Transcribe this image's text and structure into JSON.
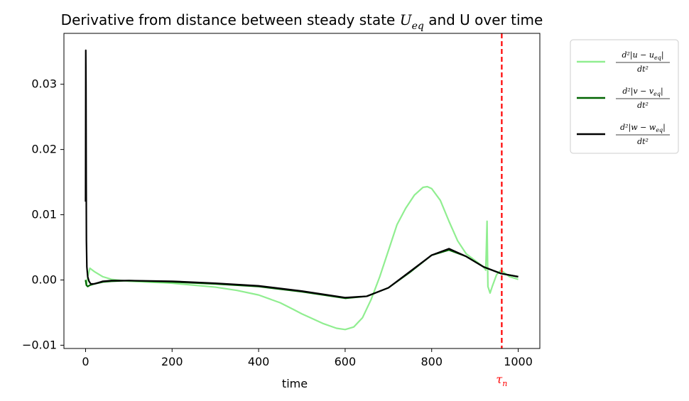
{
  "chart_data": {
    "type": "line",
    "title": "Derivative from distance between steady state U_eq and U over time",
    "title_parts": {
      "before": "Derivative from distance between steady state ",
      "var": "U",
      "sub": "eq",
      "after": " and U over time"
    },
    "xlabel": "time",
    "ylabel": "",
    "xlim": [
      -50,
      1050
    ],
    "ylim": [
      -0.0105,
      0.0378
    ],
    "xticks": [
      0,
      200,
      400,
      600,
      800,
      1000
    ],
    "xtick_labels": [
      "0",
      "200",
      "400",
      "600",
      "800",
      "1000"
    ],
    "yticks": [
      -0.01,
      0.0,
      0.01,
      0.02,
      0.03
    ],
    "ytick_labels": [
      "−0.01",
      "0.00",
      "0.01",
      "0.02",
      "0.03"
    ],
    "grid": false,
    "legend_placement": "outside-top-right",
    "vline": {
      "x": 962,
      "color": "#ff0000",
      "style": "dashed",
      "label": "τ",
      "label_sub": "n"
    },
    "series": [
      {
        "name": "d²|u − u_eq| / dt²",
        "num": "d²|u − u",
        "num_sub": "eq",
        "num_end": "|",
        "den": "dt²",
        "color": "#90ee90",
        "x": [
          0,
          2,
          5,
          10,
          20,
          40,
          60,
          100,
          200,
          300,
          350,
          400,
          450,
          480,
          500,
          520,
          550,
          580,
          600,
          620,
          640,
          660,
          680,
          700,
          720,
          740,
          760,
          780,
          790,
          800,
          820,
          840,
          860,
          880,
          900,
          910,
          920,
          925,
          928,
          930,
          935,
          940,
          950,
          960,
          970,
          980,
          990,
          1000
        ],
        "y": [
          0.0,
          -0.0008,
          0.0005,
          0.0018,
          0.0013,
          0.0005,
          0.0001,
          -0.0002,
          -0.0005,
          -0.0011,
          -0.0016,
          -0.0023,
          -0.0035,
          -0.0045,
          -0.0052,
          -0.0058,
          -0.0067,
          -0.0074,
          -0.0076,
          -0.0072,
          -0.0058,
          -0.003,
          0.0005,
          0.0045,
          0.0085,
          0.011,
          0.013,
          0.0142,
          0.0143,
          0.014,
          0.0122,
          0.009,
          0.006,
          0.004,
          0.003,
          0.0025,
          0.002,
          0.0015,
          0.009,
          -0.001,
          -0.002,
          -0.001,
          0.0008,
          0.0015,
          0.001,
          0.0005,
          0.0003,
          0.0001
        ]
      },
      {
        "name": "d²|v − v_eq| / dt²",
        "num": "d²|v − v",
        "num_sub": "eq",
        "num_end": "|",
        "den": "dt²",
        "color": "#006400",
        "x": [
          0,
          2,
          5,
          10,
          20,
          40,
          60,
          100,
          200,
          300,
          400,
          500,
          600,
          650,
          700,
          750,
          800,
          840,
          880,
          920,
          960,
          1000
        ],
        "y": [
          0.0,
          -0.0008,
          -0.001,
          -0.0008,
          -0.0006,
          -0.0003,
          -0.0002,
          -0.0001,
          -0.0003,
          -0.0006,
          -0.001,
          -0.0018,
          -0.0028,
          -0.0025,
          -0.0012,
          0.0012,
          0.0038,
          0.0046,
          0.0036,
          0.002,
          0.001,
          0.0005
        ]
      },
      {
        "name": "d²|w − w_eq| / dt²",
        "num": "d²|w − w",
        "num_sub": "eq",
        "num_end": "|",
        "den": "dt²",
        "color": "#000000",
        "x": [
          0,
          0.5,
          1,
          1.5,
          2,
          3,
          5,
          8,
          12,
          20,
          30,
          40,
          60,
          100,
          200,
          300,
          400,
          500,
          600,
          650,
          700,
          750,
          800,
          840,
          880,
          920,
          960,
          1000
        ],
        "y": [
          0.012,
          0.0352,
          0.03,
          0.015,
          0.006,
          0.002,
          0.0005,
          -0.0002,
          -0.0006,
          -0.0006,
          -0.0004,
          -0.0002,
          -0.0001,
          -0.0001,
          -0.0002,
          -0.0005,
          -0.0009,
          -0.0017,
          -0.0027,
          -0.0025,
          -0.0012,
          0.0013,
          0.0038,
          0.0048,
          0.0036,
          0.002,
          0.001,
          0.0005
        ]
      }
    ]
  }
}
